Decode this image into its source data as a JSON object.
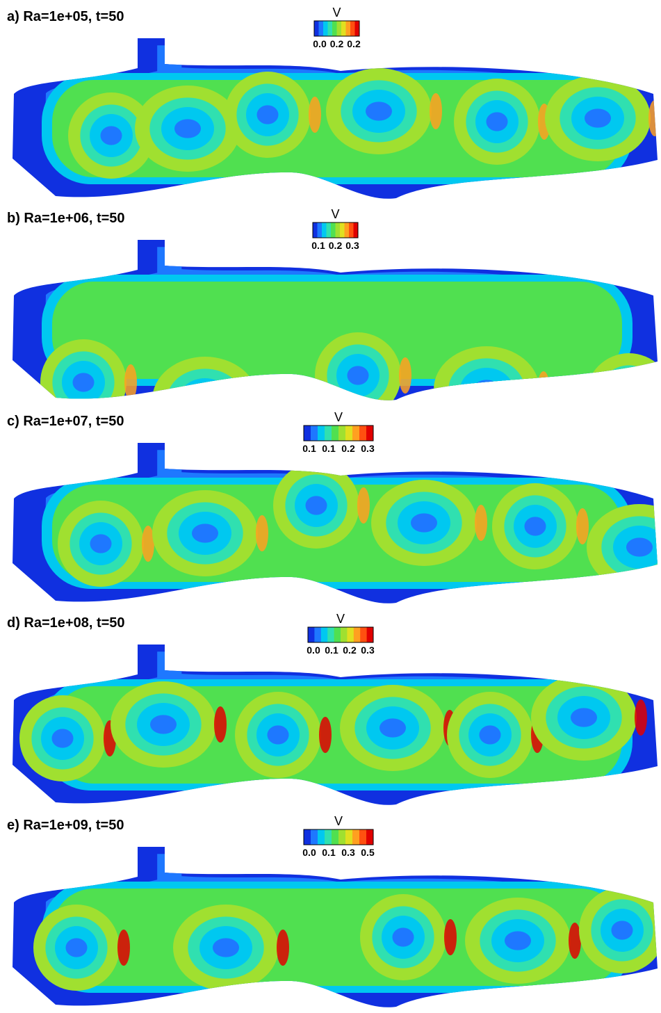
{
  "panels": [
    {
      "label": "a) Ra=1e+05, t=50",
      "colorbar": {
        "title": "V",
        "ticks": [
          "0.0",
          "0.2",
          "0.2"
        ]
      }
    },
    {
      "label": "b) Ra=1e+06, t=50",
      "colorbar": {
        "title": "V",
        "ticks": [
          "0.1",
          "0.2",
          "0.3"
        ]
      }
    },
    {
      "label": "c) Ra=1e+07, t=50",
      "colorbar": {
        "title": "V",
        "ticks": [
          "0.1",
          "0.1",
          "0.2",
          "0.3"
        ]
      }
    },
    {
      "label": "d) Ra=1e+08, t=50",
      "colorbar": {
        "title": "V",
        "ticks": [
          "0.0",
          "0.1",
          "0.2",
          "0.3"
        ]
      }
    },
    {
      "label": "e) Ra=1e+09, t=50",
      "colorbar": {
        "title": "V",
        "ticks": [
          "0.0",
          "0.1",
          "0.3",
          "0.5"
        ]
      }
    }
  ]
}
